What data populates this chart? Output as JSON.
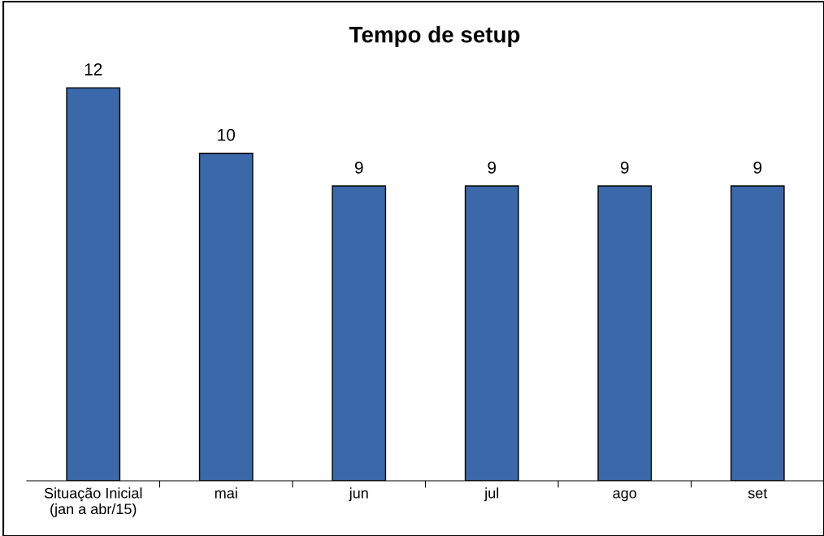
{
  "chart_data": {
    "type": "bar",
    "title": "Tempo de setup",
    "categories": [
      "Situação Inicial\n(jan a abr/15)",
      "mai",
      "jun",
      "jul",
      "ago",
      "set"
    ],
    "values": [
      12,
      10,
      9,
      9,
      9,
      9
    ],
    "color": "#3a68a8",
    "data_labels": true,
    "tick_labels": "x",
    "grid": false,
    "legend": false
  }
}
